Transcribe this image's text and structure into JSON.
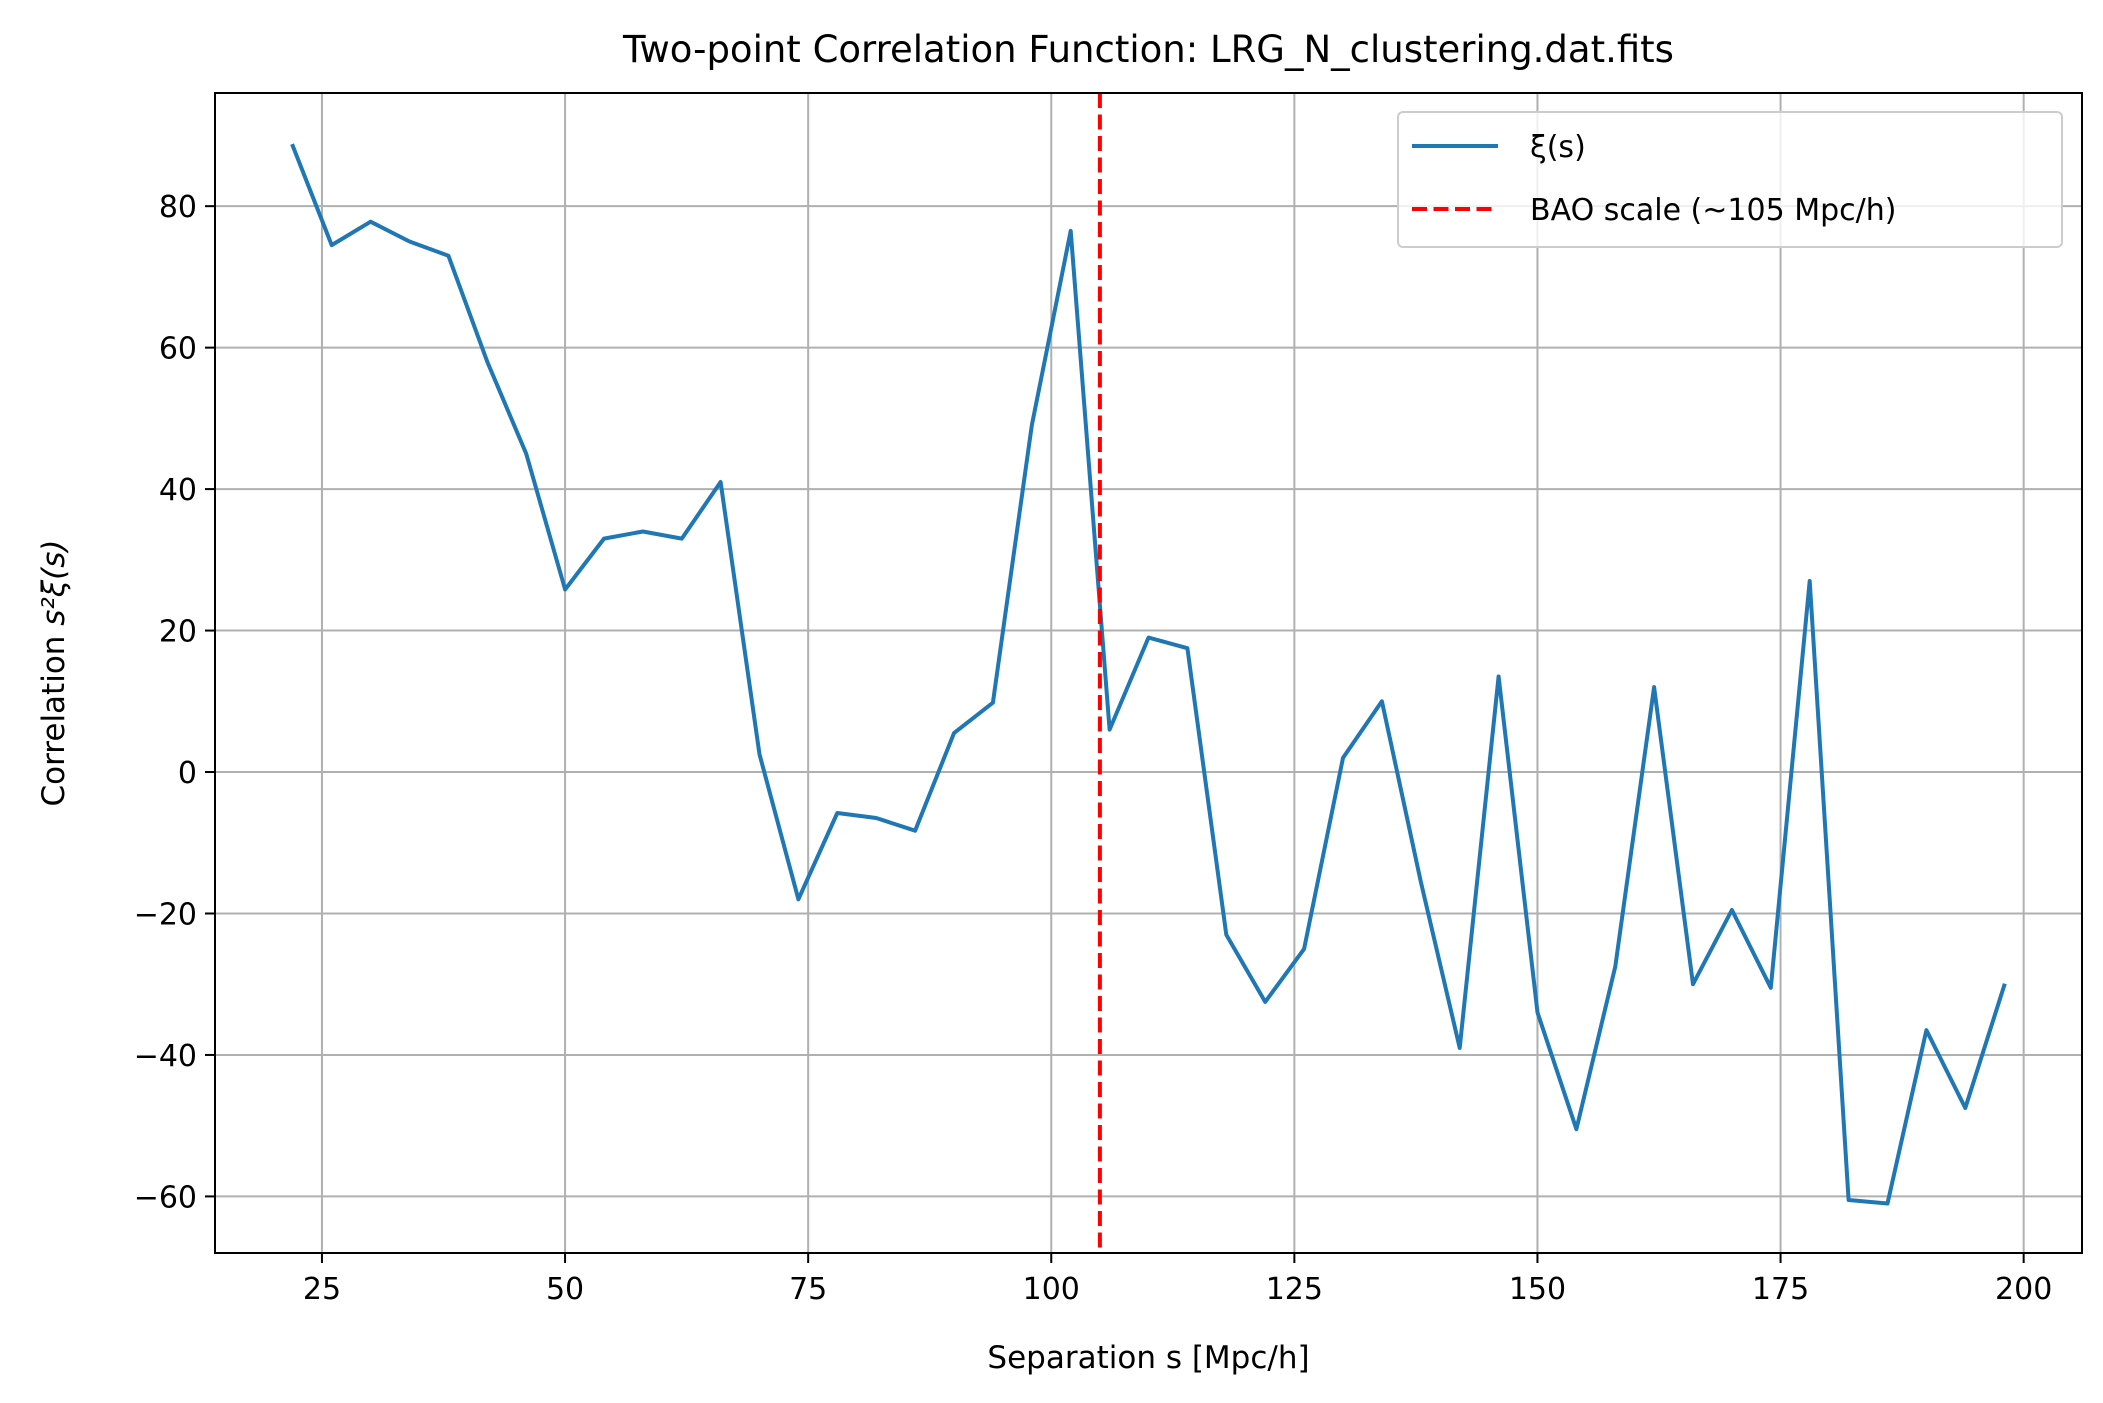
{
  "chart_data": {
    "type": "line",
    "title": "Two-point Correlation Function: LRG_N_clustering.dat.fits",
    "xlabel": "Separation s [Mpc/h]",
    "ylabel_prefix": "Correlation ",
    "ylabel_math": "s²ξ(s)",
    "xlim": [
      14,
      206
    ],
    "ylim": [
      -68,
      96
    ],
    "xticks": [
      25,
      50,
      75,
      100,
      125,
      150,
      175,
      200
    ],
    "yticks": [
      -60,
      -40,
      -20,
      0,
      20,
      40,
      60,
      80
    ],
    "grid": true,
    "legend_position": "upper right",
    "series": [
      {
        "name": "ξ(s)",
        "color": "#1f77b4",
        "linestyle": "solid",
        "x": [
          22,
          26,
          30,
          34,
          38,
          42,
          46,
          50,
          54,
          58,
          62,
          66,
          70,
          74,
          78,
          82,
          86,
          90,
          94,
          98,
          102,
          106,
          110,
          114,
          118,
          122,
          126,
          130,
          134,
          138,
          142,
          146,
          150,
          154,
          158,
          162,
          166,
          170,
          174,
          178,
          182,
          186,
          190,
          194,
          198
        ],
        "y": [
          88.5,
          74.5,
          77.8,
          75,
          73,
          58,
          45,
          25.8,
          33,
          34,
          33,
          41,
          2.5,
          -18,
          -5.8,
          -6.5,
          -8.3,
          5.5,
          9.8,
          49,
          76.5,
          6,
          19,
          17.5,
          -23,
          -32.5,
          -25,
          2,
          10,
          -15.5,
          -39,
          13.5,
          -34,
          -50.5,
          -27.5,
          12,
          -30,
          -19.5,
          -30.5,
          27,
          -60.5,
          -61,
          -36.5,
          -47.5,
          -30.2
        ]
      },
      {
        "name": "BAO scale (~105 Mpc/h)",
        "color": "#ff0000",
        "linestyle": "dashed",
        "x_vertical": 105
      }
    ]
  }
}
